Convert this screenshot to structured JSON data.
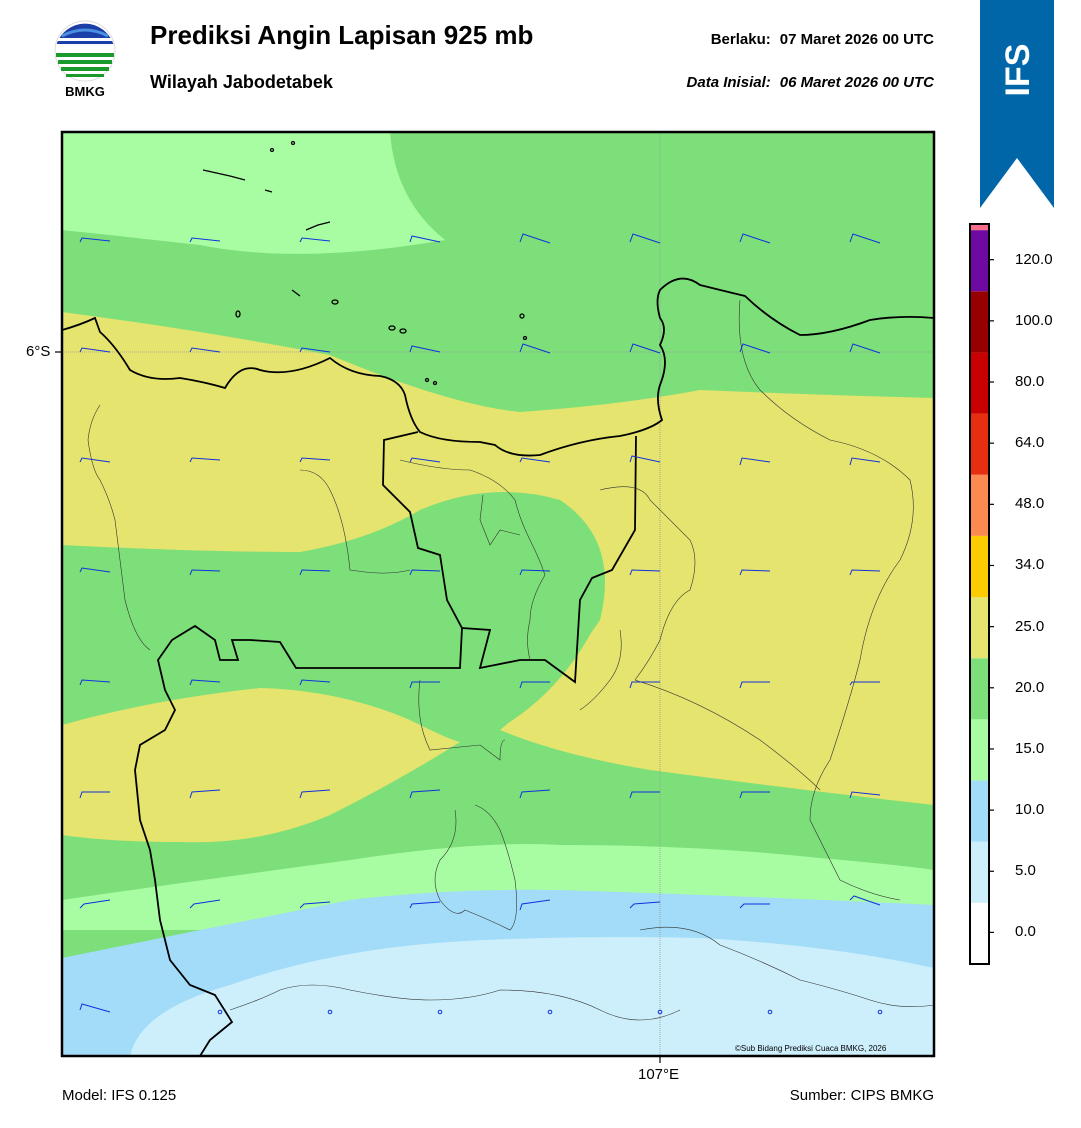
{
  "logo": {
    "text": "BMKG",
    "icon": "bmkg-logo-icon"
  },
  "header": {
    "title": "Prediksi Angin Lapisan 925 mb",
    "subtitle": "Wilayah Jabodetabek",
    "valid_label": "Berlaku:",
    "valid_value": "07 Maret 2026 00 UTC",
    "init_label": "Data Inisial:",
    "init_value": "06 Maret 2026 00 UTC"
  },
  "ribbon": {
    "text": "IFS",
    "color": "#0066a8"
  },
  "axes": {
    "lat_label": "6°S",
    "lon_label": "107°E"
  },
  "footer": {
    "model": "Model: IFS 0.125",
    "source": "Sumber: CIPS BMKG"
  },
  "credit": "©Sub Bidang Prediksi Cuaca BMKG, 2026",
  "colorbar": {
    "levels": [
      "0.0",
      "5.0",
      "10.0",
      "15.0",
      "20.0",
      "25.0",
      "34.0",
      "48.0",
      "64.0",
      "80.0",
      "100.0",
      "120.0"
    ],
    "colors": [
      "#ffffff",
      "#cdeffc",
      "#a2dcf8",
      "#a8fda2",
      "#7ddf79",
      "#e4e46e",
      "#fdcc00",
      "#fb8a51",
      "#e82e10",
      "#c90000",
      "#960000",
      "#6e0aa0",
      "#f76d8a"
    ]
  },
  "wind_speed_colors": {
    "calm": "#cdeffc",
    "light": "#a2dcf8",
    "moderate": "#a8fda2",
    "fresh": "#7ddf79",
    "strong": "#e4e46e"
  }
}
